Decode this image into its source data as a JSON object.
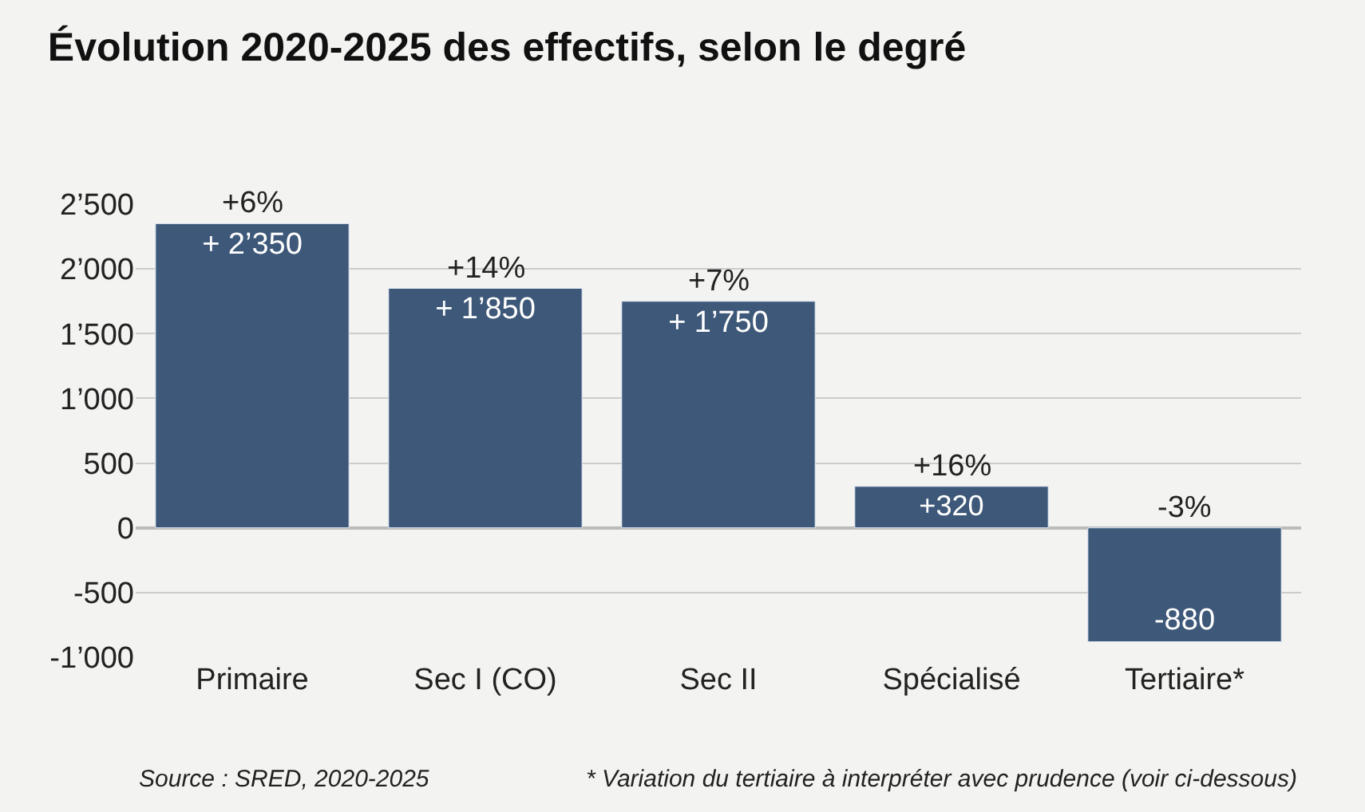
{
  "chart_data": {
    "type": "bar",
    "title": "Évolution 2020-2025 des effectifs, selon le degré",
    "categories": [
      "Primaire",
      "Sec I (CO)",
      "Sec II",
      "Spécialisé",
      "Tertiaire*"
    ],
    "values": [
      2350,
      1850,
      1750,
      320,
      -880
    ],
    "value_labels": [
      "+ 2’350",
      "+ 1’850",
      "+ 1’750",
      "+320",
      "-880"
    ],
    "color": "#3e5879",
    "ylim": [
      -1000,
      2500
    ],
    "yticks": [
      {
        "value": -1000,
        "label": "-1’000"
      },
      {
        "value": -500,
        "label": "-500"
      },
      0,
      500,
      {
        "value": 1000,
        "label": "1’000"
      },
      {
        "value": 1500,
        "label": "1’500"
      },
      {
        "value": 2000,
        "label": "2’000"
      },
      {
        "value": 2500,
        "label": "2’500"
      }
    ],
    "grid": "y",
    "annotations": [
      {
        "text": "+6%",
        "x": "Primaire",
        "y": 2350
      },
      {
        "text": "+14%",
        "x": "Sec I (CO)",
        "y": 1850
      },
      {
        "text": "+7%",
        "x": "Sec II",
        "y": 1750
      },
      {
        "text": "+16%",
        "x": "Spécialisé",
        "y": 320
      },
      {
        "text": "-3%",
        "x": "Tertiaire*",
        "y": 0
      },
      "Source : SRED, 2020-2025",
      "* Variation du tertiaire à interpréter avec prudence (voir ci-dessous)"
    ]
  }
}
